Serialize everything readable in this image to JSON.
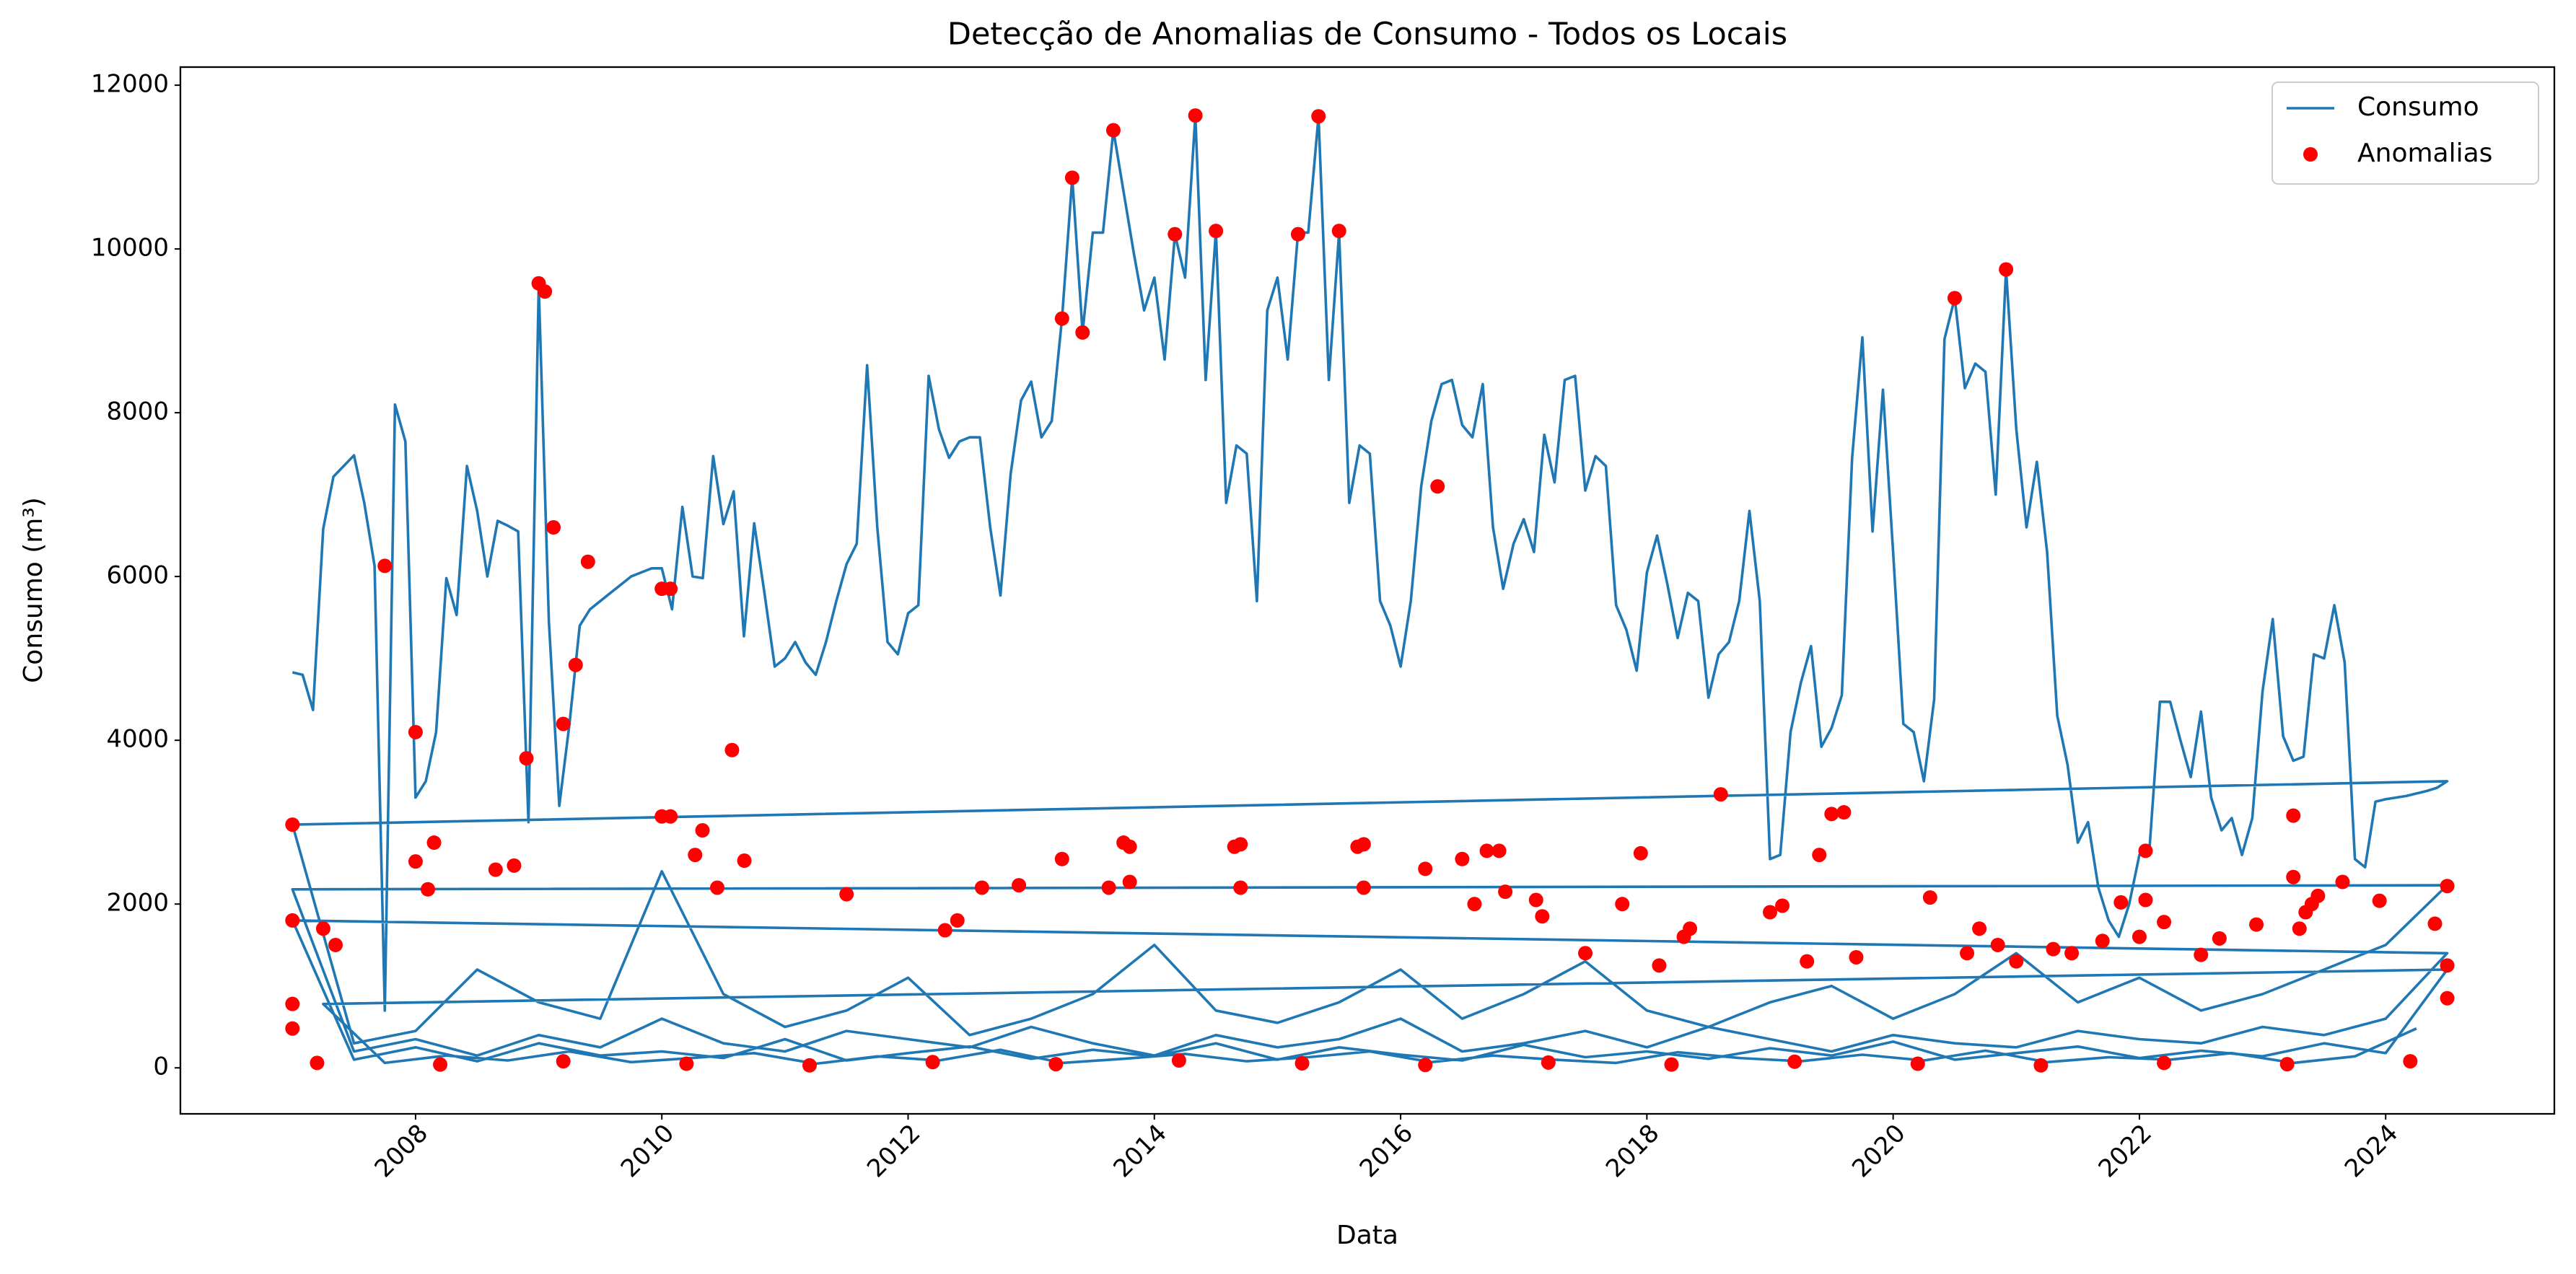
{
  "chart_data": {
    "type": "line",
    "title": "Detecção de Anomalias de Consumo - Todos os Locais",
    "x_label": "Data",
    "y_label": "Consumo (m³)",
    "xlim": [
      2006.09,
      2025.37
    ],
    "ylim": [
      -562,
      12221
    ],
    "xticks": [
      2008,
      2010,
      2012,
      2014,
      2016,
      2018,
      2020,
      2022,
      2024
    ],
    "yticks": [
      0,
      2000,
      4000,
      6000,
      8000,
      10000,
      12000
    ],
    "grid": false,
    "legend": "upper right",
    "series": [
      {
        "name": "Consumo",
        "type": "line",
        "color": "#1f77b4",
        "x": [
          2007,
          2007.083,
          2007.167,
          2007.25,
          2007.333,
          2007.417,
          2007.5,
          2007.583,
          2007.667,
          2007.75,
          2007.833,
          2007.917,
          2008,
          2008.083,
          2008.167,
          2008.25,
          2008.333,
          2008.417,
          2008.5,
          2008.583,
          2008.667,
          2008.75,
          2008.833,
          2008.917,
          2009,
          2009.083,
          2009.167,
          2009.25,
          2009.333,
          2009.417,
          2009.5,
          2009.583,
          2009.667,
          2009.75,
          2009.833,
          2009.917,
          2010,
          2010.083,
          2010.167,
          2010.25,
          2010.333,
          2010.417,
          2010.5,
          2010.583,
          2010.667,
          2010.75,
          2010.833,
          2010.917,
          2011,
          2011.083,
          2011.167,
          2011.25,
          2011.333,
          2011.417,
          2011.5,
          2011.583,
          2011.667,
          2011.75,
          2011.833,
          2011.917,
          2012,
          2012.083,
          2012.167,
          2012.25,
          2012.333,
          2012.417,
          2012.5,
          2012.583,
          2012.667,
          2012.75,
          2012.833,
          2012.917,
          2013,
          2013.083,
          2013.167,
          2013.25,
          2013.333,
          2013.417,
          2013.5,
          2013.583,
          2013.667,
          2013.75,
          2013.833,
          2013.917,
          2014,
          2014.083,
          2014.167,
          2014.25,
          2014.333,
          2014.417,
          2014.5,
          2014.583,
          2014.667,
          2014.75,
          2014.833,
          2014.917,
          2015,
          2015.083,
          2015.167,
          2015.25,
          2015.333,
          2015.417,
          2015.5,
          2015.583,
          2015.667,
          2015.75,
          2015.833,
          2015.917,
          2016,
          2016.083,
          2016.167,
          2016.25,
          2016.333,
          2016.417,
          2016.5,
          2016.583,
          2016.667,
          2016.75,
          2016.833,
          2016.917,
          2017,
          2017.083,
          2017.167,
          2017.25,
          2017.333,
          2017.417,
          2017.5,
          2017.583,
          2017.667,
          2017.75,
          2017.833,
          2017.917,
          2018,
          2018.083,
          2018.167,
          2018.25,
          2018.333,
          2018.417,
          2018.5,
          2018.583,
          2018.667,
          2018.75,
          2018.833,
          2018.917,
          2019,
          2019.083,
          2019.167,
          2019.25,
          2019.333,
          2019.417,
          2019.5,
          2019.583,
          2019.667,
          2019.75,
          2019.833,
          2019.917,
          2020,
          2020.083,
          2020.167,
          2020.25,
          2020.333,
          2020.417,
          2020.5,
          2020.583,
          2020.667,
          2020.75,
          2020.833,
          2020.917,
          2021,
          2021.083,
          2021.167,
          2021.25,
          2021.333,
          2021.417,
          2021.5,
          2021.583,
          2021.667,
          2021.75,
          2021.833,
          2021.917,
          2022,
          2022.083,
          2022.167,
          2022.25,
          2022.333,
          2022.417,
          2022.5,
          2022.583,
          2022.667,
          2022.75,
          2022.833,
          2022.917,
          2023,
          2023.083,
          2023.167,
          2023.25,
          2023.333,
          2023.417,
          2023.5,
          2023.583,
          2023.667,
          2023.75,
          2023.833,
          2023.917,
          2024,
          2024.083,
          2024.167,
          2024.25,
          2024.333,
          2024.417,
          2024.5,
          2007,
          2007.5,
          2008,
          2008.5,
          2009,
          2009.5,
          2010,
          2010.5,
          2011,
          2011.5,
          2012,
          2012.5,
          2013,
          2013.5,
          2014,
          2014.5,
          2015,
          2015.5,
          2016,
          2016.5,
          2017,
          2017.5,
          2018,
          2018.5,
          2019,
          2019.5,
          2020,
          2020.5,
          2021,
          2021.5,
          2022,
          2022.5,
          2023,
          2023.5,
          2024,
          2024.5,
          2007,
          2007.5,
          2008,
          2008.5,
          2009,
          2009.5,
          2010,
          2010.5,
          2011,
          2011.5,
          2012,
          2012.5,
          2013,
          2013.5,
          2014,
          2014.5,
          2015,
          2015.5,
          2016,
          2016.5,
          2017,
          2017.5,
          2018,
          2018.5,
          2019,
          2019.5,
          2020,
          2020.5,
          2021,
          2021.5,
          2022,
          2022.5,
          2023,
          2023.5,
          2024,
          2024.5,
          2007,
          2007.5,
          2008,
          2008.5,
          2009,
          2009.5,
          2010,
          2010.5,
          2011,
          2011.5,
          2012,
          2012.5,
          2013,
          2013.5,
          2014,
          2014.5,
          2015,
          2015.5,
          2016,
          2016.5,
          2017,
          2017.5,
          2018,
          2018.5,
          2019,
          2019.5,
          2020,
          2020.5,
          2021,
          2021.5,
          2022,
          2022.5,
          2023,
          2023.5,
          2024,
          2024.5,
          2007.25,
          2007.75,
          2008.25,
          2008.75,
          2009.25,
          2009.75,
          2010.25,
          2010.75,
          2011.25,
          2011.75,
          2012.25,
          2012.75,
          2013.25,
          2013.75,
          2014.25,
          2014.75,
          2015.25,
          2015.75,
          2016.25,
          2016.75,
          2017.25,
          2017.75,
          2018.25,
          2018.75,
          2019.25,
          2019.75,
          2020.25,
          2020.75,
          2021.25,
          2021.75,
          2022.25,
          2022.75,
          2023.25,
          2023.75,
          2024.25
        ],
        "values": [
          4830,
          4800,
          4370,
          6580,
          7220,
          7350,
          7480,
          6900,
          6130,
          700,
          8100,
          7650,
          3300,
          3500,
          4100,
          5980,
          5530,
          7350,
          6800,
          6000,
          6680,
          6620,
          6550,
          3000,
          9550,
          5450,
          3200,
          4200,
          5400,
          5600,
          5700,
          5800,
          5900,
          6000,
          6050,
          6100,
          6100,
          5600,
          6850,
          6000,
          5980,
          7470,
          6640,
          7040,
          5270,
          6650,
          5800,
          4900,
          5000,
          5200,
          4950,
          4800,
          5200,
          5700,
          6150,
          6400,
          8580,
          6600,
          5200,
          5050,
          5550,
          5650,
          8450,
          7800,
          7450,
          7650,
          7700,
          7700,
          6600,
          5770,
          7250,
          8150,
          8380,
          7700,
          7900,
          9150,
          10870,
          8980,
          10200,
          10200,
          11450,
          10700,
          9950,
          9250,
          9650,
          8650,
          10180,
          9650,
          11630,
          8400,
          10220,
          6900,
          7600,
          7500,
          5700,
          9250,
          9650,
          8650,
          10200,
          10200,
          11620,
          8400,
          10200,
          6900,
          7600,
          7500,
          5700,
          5400,
          4900,
          5700,
          7100,
          7900,
          8350,
          8400,
          7850,
          7700,
          8350,
          6600,
          5850,
          6400,
          6700,
          6300,
          7730,
          7150,
          8400,
          8450,
          7050,
          7470,
          7350,
          5650,
          5350,
          4850,
          6050,
          6500,
          5900,
          5250,
          5800,
          5700,
          4520,
          5050,
          5200,
          5700,
          6800,
          5700,
          2550,
          2600,
          4100,
          4700,
          5150,
          3920,
          4150,
          4550,
          7450,
          8920,
          6550,
          8280,
          6300,
          4200,
          4100,
          3500,
          4500,
          8900,
          9400,
          8300,
          8600,
          8500,
          7000,
          9750,
          7800,
          6600,
          7400,
          6300,
          4300,
          3700,
          2750,
          3000,
          2200,
          1800,
          1600,
          2000,
          2600,
          2700,
          4470,
          4470,
          4000,
          3550,
          4350,
          3300,
          2900,
          3050,
          2600,
          3050,
          4600,
          5480,
          4050,
          3750,
          3800,
          5050,
          5000,
          5650,
          4950,
          2550,
          2450,
          3250,
          3280,
          3300,
          3320,
          3350,
          3380,
          3420,
          3500,
          2970,
          300,
          450,
          1200,
          800,
          600,
          2400,
          900,
          500,
          700,
          1100,
          400,
          600,
          900,
          1500,
          700,
          550,
          800,
          1200,
          600,
          900,
          1300,
          700,
          500,
          800,
          1000,
          600,
          900,
          1400,
          800,
          1100,
          700,
          900,
          1200,
          1500,
          2230,
          2180,
          200,
          350,
          150,
          400,
          250,
          600,
          300,
          200,
          450,
          350,
          250,
          500,
          300,
          150,
          400,
          250,
          350,
          600,
          200,
          300,
          450,
          250,
          500,
          350,
          200,
          400,
          300,
          250,
          450,
          350,
          300,
          500,
          400,
          600,
          1400,
          1800,
          100,
          250,
          80,
          300,
          150,
          200,
          120,
          350,
          90,
          180,
          260,
          110,
          220,
          140,
          300,
          100,
          250,
          160,
          90,
          280,
          130,
          200,
          110,
          240,
          150,
          320,
          100,
          180,
          260,
          120,
          210,
          140,
          300,
          180,
          1200,
          780,
          60,
          150,
          90,
          200,
          70,
          120,
          180,
          50,
          140,
          90,
          220,
          60,
          110,
          170,
          80,
          130,
          200,
          70,
          150,
          100,
          60,
          190,
          120,
          80,
          160,
          90,
          210,
          70,
          130,
          100,
          180,
          60,
          140,
          480
        ]
      },
      {
        "name": "Anomalias",
        "type": "scatter",
        "color": "#ff0000",
        "x": [
          2007,
          2007,
          2007,
          2007,
          2007.25,
          2007.35,
          2007.75,
          2008,
          2008,
          2008.1,
          2008.15,
          2008.65,
          2008.8,
          2008.9,
          2009,
          2009.05,
          2009.12,
          2009.2,
          2009.3,
          2009.4,
          2010,
          2010.07,
          2010,
          2010.07,
          2010.27,
          2010.33,
          2010.45,
          2010.57,
          2010.67,
          2011.5,
          2012.3,
          2012.4,
          2012.6,
          2012.9,
          2013.25,
          2013.25,
          2013.333,
          2013.417,
          2013.63,
          2013.667,
          2013.75,
          2013.8,
          2013.8,
          2014.167,
          2014.333,
          2014.5,
          2014.65,
          2014.7,
          2014.7,
          2015.167,
          2015.333,
          2015.5,
          2015.65,
          2015.7,
          2015.7,
          2016.2,
          2016.3,
          2016.5,
          2016.6,
          2016.7,
          2016.8,
          2016.85,
          2017.1,
          2017.15,
          2017.5,
          2017.8,
          2017.95,
          2018.1,
          2018.3,
          2018.35,
          2018.6,
          2019,
          2019.1,
          2019.3,
          2019.4,
          2019.5,
          2019.6,
          2019.7,
          2020.3,
          2020.5,
          2020.6,
          2020.7,
          2020.85,
          2020.917,
          2021,
          2021.3,
          2021.45,
          2021.7,
          2021.85,
          2022,
          2022.05,
          2022.05,
          2022.2,
          2022.5,
          2022.65,
          2022.95,
          2023.25,
          2023.25,
          2023.3,
          2023.35,
          2023.4,
          2023.45,
          2023.65,
          2023.95,
          2024.4,
          2024.5,
          2024.5,
          2024.5,
          2007.2,
          2008.2,
          2009.2,
          2010.2,
          2011.2,
          2012.2,
          2013.2,
          2014.2,
          2015.2,
          2016.2,
          2017.2,
          2018.2,
          2019.2,
          2020.2,
          2021.2,
          2022.2,
          2023.2,
          2024.2
        ],
        "values": [
          2970,
          1800,
          780,
          480,
          1700,
          1500,
          6130,
          4100,
          2520,
          2180,
          2750,
          2420,
          2470,
          3780,
          9580,
          9480,
          6600,
          4200,
          4920,
          6180,
          5850,
          5850,
          3070,
          3070,
          2600,
          2900,
          2200,
          3880,
          2530,
          2120,
          1680,
          1800,
          2200,
          2230,
          2550,
          9150,
          10870,
          8980,
          2200,
          11450,
          2750,
          2700,
          2270,
          10180,
          11630,
          10220,
          2700,
          2730,
          2200,
          10180,
          11620,
          10220,
          2700,
          2730,
          2200,
          2430,
          7100,
          2550,
          2000,
          2650,
          2650,
          2150,
          2050,
          1850,
          1400,
          2000,
          2620,
          1250,
          1600,
          1700,
          3340,
          1900,
          1980,
          1300,
          2600,
          3100,
          3120,
          1350,
          2080,
          9400,
          1400,
          1700,
          1500,
          9750,
          1300,
          1450,
          1400,
          1550,
          2020,
          1600,
          2650,
          2050,
          1780,
          1380,
          1580,
          1750,
          3080,
          2330,
          1700,
          1900,
          2000,
          2100,
          2270,
          2040,
          1760,
          2220,
          1250,
          850,
          60,
          40,
          80,
          50,
          30,
          70,
          45,
          90,
          55,
          35,
          65,
          40,
          75,
          50,
          30,
          60,
          45,
          80
        ]
      }
    ]
  }
}
